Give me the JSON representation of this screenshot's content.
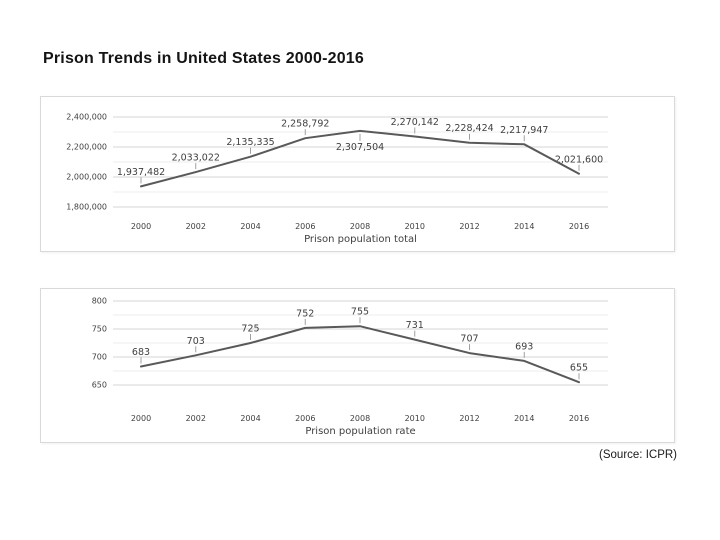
{
  "page": {
    "title": "Prison Trends in United States 2000-2016",
    "source": "(Source: ICPR)"
  },
  "colors": {
    "line": "#595959",
    "grid_major": "#d6d6d6",
    "grid_minor": "#eeeeee",
    "text": "#3f3f3f"
  },
  "chart_data": [
    {
      "type": "line",
      "title": "",
      "xlabel": "Prison population total",
      "ylabel": "",
      "categories": [
        "2000",
        "2002",
        "2004",
        "2006",
        "2008",
        "2010",
        "2012",
        "2014",
        "2016"
      ],
      "values": [
        1937482,
        2033022,
        2135335,
        2258792,
        2307504,
        2270142,
        2228424,
        2217947,
        2021600
      ],
      "labels": [
        "1,937,482",
        "2,033,022",
        "2,135,335",
        "2,258,792",
        "2,307,504",
        "2,270,142",
        "2,228,424",
        "2,217,947",
        "2,021,600"
      ],
      "label_positions": [
        "above",
        "above",
        "above",
        "above",
        "below",
        "above",
        "above",
        "above",
        "above"
      ],
      "ylim": [
        1800000,
        2400000
      ],
      "ytick_step": 200000,
      "yticks": [
        "2,400,000",
        "2,200,000",
        "2,000,000",
        "1,800,000"
      ],
      "grid": true,
      "minor_grid": true,
      "legend": "none",
      "line_color": "#595959"
    },
    {
      "type": "line",
      "title": "",
      "xlabel": "Prison population rate",
      "ylabel": "",
      "categories": [
        "2000",
        "2002",
        "2004",
        "2006",
        "2008",
        "2010",
        "2012",
        "2014",
        "2016"
      ],
      "values": [
        683,
        703,
        725,
        752,
        755,
        731,
        707,
        693,
        655
      ],
      "labels": [
        "683",
        "703",
        "725",
        "752",
        "755",
        "731",
        "707",
        "693",
        "655"
      ],
      "label_positions": [
        "above",
        "above",
        "above",
        "above",
        "above",
        "above",
        "above",
        "above",
        "above"
      ],
      "ylim": [
        650,
        800
      ],
      "ytick_step": 50,
      "yticks": [
        "800",
        "750",
        "700",
        "650"
      ],
      "grid": true,
      "minor_grid": true,
      "legend": "none",
      "line_color": "#595959"
    }
  ]
}
